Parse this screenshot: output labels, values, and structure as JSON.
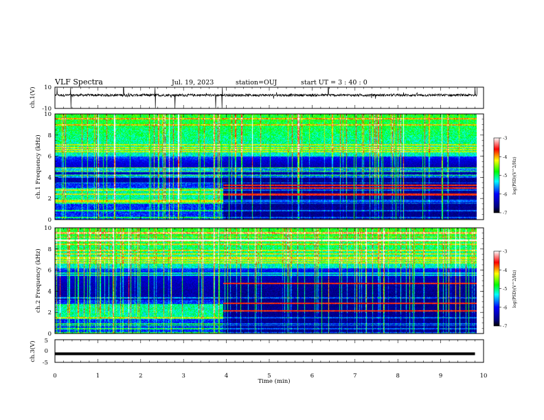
{
  "header": {
    "title": "VLF Spectra",
    "date": "Jul. 19, 2023",
    "station": "station=OUJ",
    "start": "start UT = 3 : 40 : 0"
  },
  "chart_data": [
    {
      "type": "line",
      "panel": "ch1-waveform",
      "ylabel": "ch.1(V)",
      "ylim": [
        -10,
        10
      ],
      "yticks": [
        "10",
        "-10"
      ],
      "xlim": [
        0,
        10
      ],
      "baseline_v": 2.5,
      "noise_amplitude_v": 1.2,
      "spikes_min": [
        0.05,
        0.37,
        1.6,
        2.34,
        2.8,
        3.75,
        3.9,
        6.38,
        9.8,
        9.85
      ]
    },
    {
      "type": "heatmap",
      "panel": "ch1-spectrogram",
      "ylabel": "ch.1 Frequency (kHz)",
      "ylim": [
        0,
        10
      ],
      "yticks": [
        "0",
        "2",
        "4",
        "6",
        "8",
        "10"
      ],
      "xlim": [
        0,
        10
      ],
      "data_end_min": 9.8,
      "transition_min": 3.9,
      "quiet_band_top_khz": 6.0,
      "quiet_band_bottom_khz": 3.5,
      "chorus_band_khz_before": [
        1.6,
        3.0
      ],
      "strong_lines_khz_after": [
        2.4,
        3.0,
        3.3
      ],
      "colorbar": {
        "label": "log(PSD)(V^2/Hz)",
        "range": [
          -7,
          -3
        ],
        "ticks": [
          "-3",
          "-4",
          "-5",
          "-6",
          "-7"
        ]
      }
    },
    {
      "type": "heatmap",
      "panel": "ch2-spectrogram",
      "ylabel": "ch.2 Frequency (kHz)",
      "ylim": [
        0,
        10
      ],
      "yticks": [
        "0",
        "2",
        "4",
        "6",
        "8",
        "10"
      ],
      "xlim": [
        0,
        10
      ],
      "data_end_min": 9.8,
      "transition_min": 3.9,
      "quiet_band_top_khz": 6.2,
      "quiet_band_bottom_khz": 3.2,
      "chorus_band_khz_before": [
        1.4,
        2.8
      ],
      "strong_lines_khz_after": [
        2.2,
        2.9,
        4.8
      ],
      "colorbar": {
        "label": "log(PSD)(V^2/Hz)",
        "range": [
          -7,
          -3
        ],
        "ticks": [
          "-3",
          "-4",
          "-5",
          "-6",
          "-7"
        ]
      }
    },
    {
      "type": "line",
      "panel": "ch3-waveform",
      "ylabel": "ch.3(V)",
      "ylim": [
        -5,
        5
      ],
      "yticks": [
        "5",
        "0",
        "-5"
      ],
      "xlim": [
        0,
        10
      ],
      "constant_v": -1.2
    }
  ],
  "xaxis": {
    "label": "Time (min)",
    "ticks": [
      "0",
      "1",
      "2",
      "3",
      "4",
      "5",
      "6",
      "7",
      "8",
      "9",
      "10"
    ]
  },
  "colors": {
    "trace": "#000000",
    "colormap": [
      "#00007f",
      "#0000ff",
      "#00ffff",
      "#00ff00",
      "#ffff00",
      "#ff0000",
      "#ffffff"
    ]
  }
}
